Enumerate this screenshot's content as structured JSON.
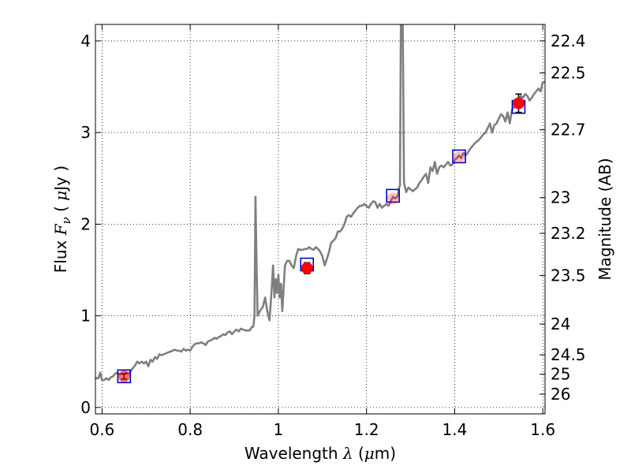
{
  "chart_data": {
    "type": "line",
    "xlabel": {
      "prefix": "Wavelength  ",
      "symbol": "λ",
      "suffix_open": " (",
      "unit_mu": "μ",
      "unit_rest": "m)"
    },
    "ylabel": {
      "prefix": "Flux  ",
      "symbol": "F",
      "subscript": "ν",
      "paren_open": "  ( ",
      "unit_mu": "μ",
      "unit_rest": "Jy )"
    },
    "y2label": "Magnitude (AB)",
    "xlim": [
      0.585,
      1.605
    ],
    "ylim": [
      -0.07,
      4.18
    ],
    "grid": true,
    "x_ticks": [
      0.6,
      0.8,
      1.0,
      1.2,
      1.4,
      1.6
    ],
    "x_tick_labels": [
      "0.6",
      "0.8",
      "1",
      "1.2",
      "1.4",
      "1.6"
    ],
    "y_ticks": [
      0,
      1,
      2,
      3,
      4
    ],
    "y_tick_labels": [
      "0",
      "1",
      "2",
      "3",
      "4"
    ],
    "mag_ticks": [
      {
        "label": "22.4",
        "flux": 4.0
      },
      {
        "label": "22.5",
        "flux": 3.65
      },
      {
        "label": "22.7",
        "flux": 3.03
      },
      {
        "label": "23",
        "flux": 2.29
      },
      {
        "label": "23.2",
        "flux": 1.9
      },
      {
        "label": "23.5",
        "flux": 1.44
      },
      {
        "label": "24",
        "flux": 0.91
      },
      {
        "label": "24.5",
        "flux": 0.575
      },
      {
        "label": "25",
        "flux": 0.363
      },
      {
        "label": "26",
        "flux": 0.145
      }
    ],
    "series": [
      {
        "kind": "model_spectrum",
        "color": "#7f7f7f",
        "x": [
          0.585,
          0.592,
          0.596,
          0.6,
          0.605,
          0.61,
          0.615,
          0.62,
          0.625,
          0.63,
          0.635,
          0.64,
          0.645,
          0.65,
          0.655,
          0.66,
          0.665,
          0.67,
          0.675,
          0.68,
          0.685,
          0.69,
          0.695,
          0.7,
          0.705,
          0.71,
          0.715,
          0.72,
          0.725,
          0.73,
          0.735,
          0.74,
          0.745,
          0.75,
          0.755,
          0.76,
          0.765,
          0.77,
          0.775,
          0.78,
          0.785,
          0.79,
          0.795,
          0.8,
          0.805,
          0.81,
          0.815,
          0.82,
          0.825,
          0.83,
          0.835,
          0.84,
          0.845,
          0.85,
          0.855,
          0.86,
          0.865,
          0.87,
          0.875,
          0.88,
          0.885,
          0.89,
          0.895,
          0.9,
          0.905,
          0.91,
          0.915,
          0.92,
          0.925,
          0.93,
          0.935,
          0.94,
          0.943,
          0.946,
          0.948,
          0.95,
          0.953,
          0.958,
          0.965,
          0.97,
          0.975,
          0.98,
          0.985,
          0.988,
          0.991,
          0.994,
          0.997,
          1.0,
          1.003,
          1.006,
          1.009,
          1.012,
          1.015,
          1.02,
          1.025,
          1.03,
          1.035,
          1.04,
          1.045,
          1.05,
          1.055,
          1.06,
          1.065,
          1.07,
          1.075,
          1.08,
          1.085,
          1.09,
          1.095,
          1.1,
          1.105,
          1.11,
          1.115,
          1.12,
          1.125,
          1.13,
          1.135,
          1.14,
          1.145,
          1.15,
          1.155,
          1.16,
          1.165,
          1.17,
          1.175,
          1.18,
          1.185,
          1.19,
          1.195,
          1.2,
          1.205,
          1.21,
          1.215,
          1.22,
          1.225,
          1.23,
          1.235,
          1.24,
          1.245,
          1.25,
          1.255,
          1.26,
          1.265,
          1.27,
          1.272,
          1.274,
          1.276,
          1.278,
          1.28,
          1.282,
          1.285,
          1.29,
          1.295,
          1.3,
          1.305,
          1.31,
          1.315,
          1.32,
          1.325,
          1.33,
          1.335,
          1.34,
          1.345,
          1.35,
          1.355,
          1.36,
          1.365,
          1.37,
          1.375,
          1.38,
          1.385,
          1.39,
          1.395,
          1.4,
          1.405,
          1.41,
          1.415,
          1.42,
          1.425,
          1.43,
          1.435,
          1.44,
          1.445,
          1.45,
          1.455,
          1.46,
          1.465,
          1.47,
          1.475,
          1.48,
          1.485,
          1.49,
          1.495,
          1.5,
          1.505,
          1.51,
          1.515,
          1.52,
          1.525,
          1.53,
          1.535,
          1.54,
          1.545,
          1.55,
          1.555,
          1.56,
          1.565,
          1.57,
          1.575,
          1.58,
          1.585,
          1.59,
          1.595,
          1.6,
          1.605
        ],
        "y": [
          0.32,
          0.32,
          0.38,
          0.3,
          0.3,
          0.32,
          0.3,
          0.33,
          0.34,
          0.37,
          0.38,
          0.36,
          0.37,
          0.36,
          0.38,
          0.37,
          0.4,
          0.43,
          0.46,
          0.5,
          0.48,
          0.5,
          0.48,
          0.5,
          0.45,
          0.52,
          0.5,
          0.55,
          0.53,
          0.58,
          0.57,
          0.58,
          0.59,
          0.6,
          0.61,
          0.62,
          0.63,
          0.62,
          0.62,
          0.61,
          0.64,
          0.62,
          0.63,
          0.62,
          0.66,
          0.69,
          0.7,
          0.7,
          0.71,
          0.7,
          0.68,
          0.72,
          0.73,
          0.74,
          0.76,
          0.75,
          0.77,
          0.78,
          0.8,
          0.79,
          0.82,
          0.83,
          0.8,
          0.83,
          0.85,
          0.83,
          0.86,
          0.85,
          0.84,
          0.84,
          0.84,
          0.88,
          0.88,
          1.0,
          2.3,
          1.7,
          1.0,
          1.05,
          1.1,
          1.2,
          1.05,
          0.95,
          1.3,
          1.55,
          1.2,
          1.4,
          1.25,
          1.45,
          1.2,
          1.35,
          1.05,
          1.3,
          1.55,
          1.6,
          1.6,
          1.55,
          1.52,
          1.65,
          1.73,
          1.72,
          1.72,
          1.73,
          1.73,
          1.75,
          1.73,
          1.72,
          1.75,
          1.73,
          1.7,
          1.65,
          1.55,
          1.62,
          1.7,
          1.8,
          1.82,
          1.85,
          1.92,
          1.92,
          1.95,
          2.0,
          2.08,
          2.1,
          2.08,
          2.12,
          2.15,
          2.18,
          2.2,
          2.2,
          2.22,
          2.2,
          2.18,
          2.22,
          2.25,
          2.24,
          2.18,
          2.22,
          2.18,
          2.2,
          2.22,
          2.2,
          2.25,
          2.3,
          2.28,
          2.3,
          2.35,
          2.4,
          2.42,
          4.3,
          4.3,
          4.3,
          2.45,
          2.35,
          2.4,
          2.38,
          2.36,
          2.38,
          2.4,
          2.45,
          2.48,
          2.52,
          2.55,
          2.45,
          2.62,
          2.58,
          2.68,
          2.55,
          2.62,
          2.64,
          2.62,
          2.65,
          2.68,
          2.64,
          2.65,
          2.7,
          2.72,
          2.75,
          2.72,
          2.78,
          2.75,
          2.78,
          2.82,
          2.85,
          2.88,
          2.9,
          2.92,
          2.95,
          2.98,
          3.0,
          3.05,
          3.1,
          3.0,
          3.08,
          3.1,
          3.15,
          3.2,
          3.18,
          3.12,
          3.22,
          3.1,
          3.25,
          3.28,
          3.3,
          3.35,
          3.4,
          3.38,
          3.42,
          3.4,
          3.35,
          3.38,
          3.42,
          3.45,
          3.48,
          3.45,
          3.55,
          3.55
        ]
      },
      {
        "kind": "model_photometry",
        "marker": "open-square",
        "color": "#0000cc",
        "x": [
          0.65,
          1.065,
          1.26,
          1.41,
          1.545
        ],
        "y": [
          0.34,
          1.56,
          2.31,
          2.74,
          3.28
        ]
      },
      {
        "kind": "observed_photometry",
        "marker": "filled-circle",
        "color": "#ff0000",
        "x": [
          0.65,
          1.065,
          1.26,
          1.41,
          1.545
        ],
        "y": [
          0.34,
          1.52,
          2.28,
          2.73,
          3.32
        ],
        "yerr": [
          0.03,
          0.06,
          0.0,
          0.0,
          0.1
        ],
        "opacity": [
          0.55,
          1.0,
          0.25,
          0.25,
          1.0
        ]
      }
    ]
  }
}
